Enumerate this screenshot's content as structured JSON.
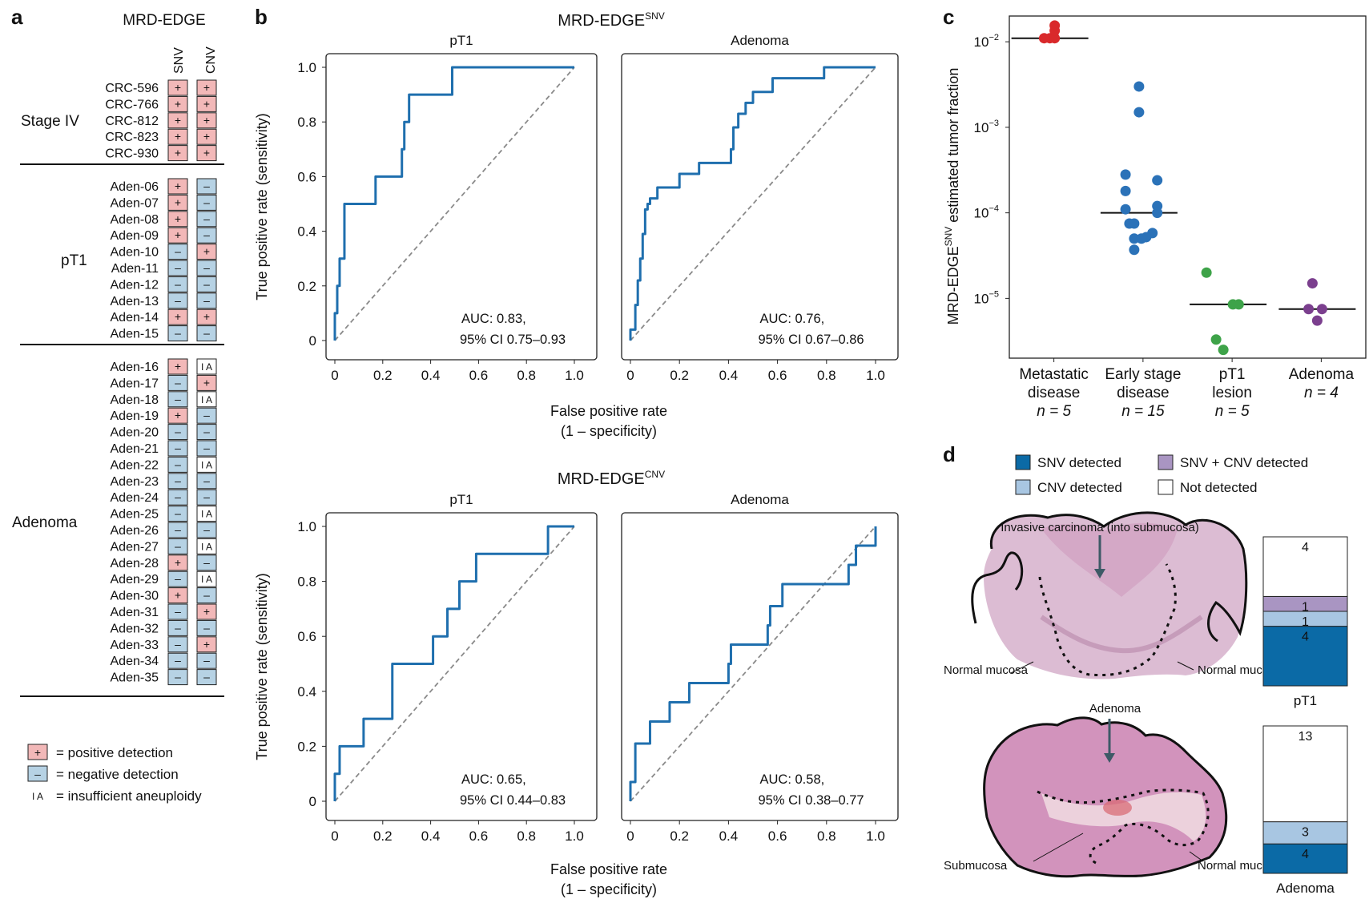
{
  "panel_labels": {
    "a": "a",
    "b": "b",
    "c": "c",
    "d": "d"
  },
  "panel_a": {
    "title": "MRD-EDGE",
    "col_headers": [
      "SNV",
      "CNV"
    ],
    "groups": [
      {
        "name": "Stage IV",
        "samples": [
          {
            "id": "CRC-596",
            "snv": "+",
            "cnv": "+"
          },
          {
            "id": "CRC-766",
            "snv": "+",
            "cnv": "+"
          },
          {
            "id": "CRC-812",
            "snv": "+",
            "cnv": "+"
          },
          {
            "id": "CRC-823",
            "snv": "+",
            "cnv": "+"
          },
          {
            "id": "CRC-930",
            "snv": "+",
            "cnv": "+"
          }
        ]
      },
      {
        "name": "pT1",
        "samples": [
          {
            "id": "Aden-06",
            "snv": "+",
            "cnv": "–"
          },
          {
            "id": "Aden-07",
            "snv": "+",
            "cnv": "–"
          },
          {
            "id": "Aden-08",
            "snv": "+",
            "cnv": "–"
          },
          {
            "id": "Aden-09",
            "snv": "+",
            "cnv": "–"
          },
          {
            "id": "Aden-10",
            "snv": "–",
            "cnv": "+"
          },
          {
            "id": "Aden-11",
            "snv": "–",
            "cnv": "–"
          },
          {
            "id": "Aden-12",
            "snv": "–",
            "cnv": "–"
          },
          {
            "id": "Aden-13",
            "snv": "–",
            "cnv": "–"
          },
          {
            "id": "Aden-14",
            "snv": "+",
            "cnv": "+"
          },
          {
            "id": "Aden-15",
            "snv": "–",
            "cnv": "–"
          }
        ]
      },
      {
        "name": "Adenoma",
        "samples": [
          {
            "id": "Aden-16",
            "snv": "+",
            "cnv": "I A"
          },
          {
            "id": "Aden-17",
            "snv": "–",
            "cnv": "+"
          },
          {
            "id": "Aden-18",
            "snv": "–",
            "cnv": "I A"
          },
          {
            "id": "Aden-19",
            "snv": "+",
            "cnv": "–"
          },
          {
            "id": "Aden-20",
            "snv": "–",
            "cnv": "–"
          },
          {
            "id": "Aden-21",
            "snv": "–",
            "cnv": "–"
          },
          {
            "id": "Aden-22",
            "snv": "–",
            "cnv": "I A"
          },
          {
            "id": "Aden-23",
            "snv": "–",
            "cnv": "–"
          },
          {
            "id": "Aden-24",
            "snv": "–",
            "cnv": "–"
          },
          {
            "id": "Aden-25",
            "snv": "–",
            "cnv": "I A"
          },
          {
            "id": "Aden-26",
            "snv": "–",
            "cnv": "–"
          },
          {
            "id": "Aden-27",
            "snv": "–",
            "cnv": "I A"
          },
          {
            "id": "Aden-28",
            "snv": "+",
            "cnv": "–"
          },
          {
            "id": "Aden-29",
            "snv": "–",
            "cnv": "I A"
          },
          {
            "id": "Aden-30",
            "snv": "+",
            "cnv": "–"
          },
          {
            "id": "Aden-31",
            "snv": "–",
            "cnv": "+"
          },
          {
            "id": "Aden-32",
            "snv": "–",
            "cnv": "–"
          },
          {
            "id": "Aden-33",
            "snv": "–",
            "cnv": "+"
          },
          {
            "id": "Aden-34",
            "snv": "–",
            "cnv": "–"
          },
          {
            "id": "Aden-35",
            "snv": "–",
            "cnv": "–"
          }
        ]
      }
    ],
    "legend": [
      {
        "symbol": "+",
        "text": "= positive detection"
      },
      {
        "symbol": "–",
        "text": "= negative detection"
      },
      {
        "symbol": "I A",
        "text": "= insufficient aneuploidy"
      }
    ],
    "colors": {
      "positive": "#f2b8b8",
      "negative": "#b6d2e4",
      "ia": "#ffffff"
    }
  },
  "chart_data": [
    {
      "type": "line",
      "id": "roc-snv-pt1",
      "title": "MRD-EDGE",
      "title_sup": "SNV",
      "subtitle": "pT1",
      "xlabel": "False positive rate",
      "xlabel2": "(1 – specificity)",
      "ylabel": "True positive rate (sensitivity)",
      "xlim": [
        0,
        1
      ],
      "ylim": [
        0,
        1
      ],
      "xticks": [
        "0",
        "0.2",
        "0.4",
        "0.6",
        "0.8",
        "1.0"
      ],
      "yticks": [
        "0",
        "0.2",
        "0.4",
        "0.6",
        "0.8",
        "1.0"
      ],
      "auc_line1": "AUC: 0.83,",
      "auc_line2": "95% CI 0.75–0.93",
      "x": [
        0,
        0,
        0.01,
        0.01,
        0.02,
        0.02,
        0.04,
        0.04,
        0.17,
        0.17,
        0.28,
        0.28,
        0.29,
        0.29,
        0.31,
        0.31,
        0.49,
        0.49,
        1.0
      ],
      "y": [
        0,
        0.1,
        0.1,
        0.2,
        0.2,
        0.3,
        0.3,
        0.5,
        0.5,
        0.6,
        0.6,
        0.7,
        0.7,
        0.8,
        0.8,
        0.9,
        0.9,
        1.0,
        1.0
      ]
    },
    {
      "type": "line",
      "id": "roc-snv-adenoma",
      "subtitle": "Adenoma",
      "xlim": [
        0,
        1
      ],
      "ylim": [
        0,
        1
      ],
      "xticks": [
        "0",
        "0.2",
        "0.4",
        "0.6",
        "0.8",
        "1.0"
      ],
      "auc_line1": "AUC: 0.76,",
      "auc_line2": "95% CI 0.67–0.86",
      "x": [
        0,
        0,
        0.02,
        0.02,
        0.03,
        0.03,
        0.04,
        0.04,
        0.05,
        0.05,
        0.06,
        0.06,
        0.07,
        0.07,
        0.08,
        0.08,
        0.09,
        0.09,
        0.11,
        0.11,
        0.13,
        0.13,
        0.2,
        0.2,
        0.28,
        0.28,
        0.41,
        0.41,
        0.42,
        0.42,
        0.44,
        0.44,
        0.47,
        0.47,
        0.5,
        0.5,
        0.54,
        0.54,
        0.58,
        0.58,
        0.73,
        0.73,
        0.79,
        0.79,
        1.0
      ],
      "y": [
        0,
        0.04,
        0.04,
        0.13,
        0.13,
        0.22,
        0.22,
        0.3,
        0.3,
        0.39,
        0.39,
        0.48,
        0.48,
        0.5,
        0.5,
        0.52,
        0.52,
        0.52,
        0.52,
        0.56,
        0.56,
        0.56,
        0.56,
        0.61,
        0.61,
        0.65,
        0.65,
        0.7,
        0.7,
        0.78,
        0.78,
        0.83,
        0.83,
        0.87,
        0.87,
        0.91,
        0.91,
        0.91,
        0.91,
        0.96,
        0.96,
        0.96,
        0.96,
        1.0,
        1.0
      ]
    },
    {
      "type": "line",
      "id": "roc-cnv-pt1",
      "title": "MRD-EDGE",
      "title_sup": "CNV",
      "subtitle": "pT1",
      "xlabel": "False positive rate",
      "xlabel2": "(1 – specificity)",
      "ylabel": "True positive rate (sensitivity)",
      "xlim": [
        0,
        1
      ],
      "ylim": [
        0,
        1
      ],
      "xticks": [
        "0",
        "0.2",
        "0.4",
        "0.6",
        "0.8",
        "1.0"
      ],
      "yticks": [
        "0",
        "0.2",
        "0.4",
        "0.6",
        "0.8",
        "1.0"
      ],
      "auc_line1": "AUC: 0.65,",
      "auc_line2": "95% CI 0.44–0.83",
      "x": [
        0,
        0,
        0.02,
        0.02,
        0.12,
        0.12,
        0.24,
        0.24,
        0.41,
        0.41,
        0.47,
        0.47,
        0.52,
        0.52,
        0.59,
        0.59,
        0.89,
        0.89,
        1.0
      ],
      "y": [
        0,
        0.1,
        0.1,
        0.2,
        0.2,
        0.3,
        0.3,
        0.5,
        0.5,
        0.6,
        0.6,
        0.7,
        0.7,
        0.8,
        0.8,
        0.9,
        0.9,
        1.0,
        1.0
      ]
    },
    {
      "type": "line",
      "id": "roc-cnv-adenoma",
      "subtitle": "Adenoma",
      "xlim": [
        0,
        1
      ],
      "ylim": [
        0,
        1
      ],
      "xticks": [
        "0",
        "0.2",
        "0.4",
        "0.6",
        "0.8",
        "1.0"
      ],
      "auc_line1": "AUC: 0.58,",
      "auc_line2": "95% CI 0.38–0.77",
      "x": [
        0,
        0,
        0.02,
        0.02,
        0.08,
        0.08,
        0.16,
        0.16,
        0.24,
        0.24,
        0.4,
        0.4,
        0.41,
        0.41,
        0.56,
        0.56,
        0.57,
        0.57,
        0.62,
        0.62,
        0.89,
        0.89,
        0.92,
        0.92,
        1.0,
        1.0
      ],
      "y": [
        0,
        0.07,
        0.07,
        0.21,
        0.21,
        0.29,
        0.29,
        0.36,
        0.36,
        0.43,
        0.43,
        0.5,
        0.5,
        0.57,
        0.57,
        0.64,
        0.64,
        0.71,
        0.71,
        0.79,
        0.79,
        0.86,
        0.86,
        0.93,
        0.93,
        1.0
      ]
    },
    {
      "type": "scatter",
      "id": "tumor-fraction",
      "ylabel_prefix": "MRD-EDGE",
      "ylabel_sup": "SNV",
      "ylabel_suffix": " estimated tumor fraction",
      "yscale": "log",
      "ylim": [
        2e-06,
        0.02
      ],
      "yticks": [
        {
          "base": "10",
          "exp": "−2",
          "value": 0.01
        },
        {
          "base": "10",
          "exp": "−3",
          "value": 0.001
        },
        {
          "base": "10",
          "exp": "−4",
          "value": 0.0001
        },
        {
          "base": "10",
          "exp": "−5",
          "value": 1e-05
        }
      ],
      "groups": [
        {
          "label1": "Metastatic",
          "label2": "disease",
          "n": "n = 5",
          "color": "#d9292b",
          "median": 0.011,
          "points": [
            [
              -0.12,
              0.011
            ],
            [
              0.0,
              0.011
            ],
            [
              0.1,
              0.011
            ],
            [
              0.1,
              0.0135
            ],
            [
              0.1,
              0.0155
            ]
          ]
        },
        {
          "label1": "Early stage",
          "label2": "disease",
          "n": "n = 15",
          "color": "#2b72b8",
          "median": 0.0001,
          "points": [
            [
              0.0,
              0.003
            ],
            [
              0.0,
              0.0015
            ],
            [
              -0.28,
              0.00028
            ],
            [
              0.38,
              0.00024
            ],
            [
              -0.28,
              0.00018
            ],
            [
              0.38,
              0.00012
            ],
            [
              -0.28,
              0.00011
            ],
            [
              0.38,
              0.0001
            ],
            [
              -0.2,
              7.5e-05
            ],
            [
              -0.1,
              7.5e-05
            ],
            [
              0.28,
              5.8e-05
            ],
            [
              0.15,
              5.2e-05
            ],
            [
              -0.1,
              5e-05
            ],
            [
              0.05,
              5e-05
            ],
            [
              -0.1,
              3.7e-05
            ]
          ]
        },
        {
          "label1": "pT1",
          "label2": "lesion",
          "n": "n = 5",
          "color": "#3ea349",
          "median": 8.5e-06,
          "points": [
            [
              -0.45,
              2e-05
            ],
            [
              0.1,
              8.5e-06
            ],
            [
              0.22,
              8.5e-06
            ],
            [
              -0.25,
              3.3e-06
            ],
            [
              -0.1,
              2.5e-06
            ]
          ]
        },
        {
          "label1": "Adenoma",
          "label2": "",
          "n": "n = 4",
          "color": "#7b3f8e",
          "median": 7.5e-06,
          "points": [
            [
              -0.1,
              1.5e-05
            ],
            [
              -0.18,
              7.5e-06
            ],
            [
              0.1,
              7.5e-06
            ],
            [
              0.0,
              5.5e-06
            ]
          ]
        }
      ]
    },
    {
      "type": "bar",
      "id": "detection-stacks",
      "stacked": true,
      "legend": [
        {
          "label": "SNV detected",
          "color": "#0b6aa6"
        },
        {
          "label": "SNV + CNV detected",
          "color": "#a995c2"
        },
        {
          "label": "CNV detected",
          "color": "#a8c6e2"
        },
        {
          "label": "Not detected",
          "color": "#ffffff"
        }
      ],
      "categories": [
        "pT1",
        "Adenoma"
      ],
      "series": [
        {
          "name": "SNV detected",
          "values": [
            4,
            4
          ]
        },
        {
          "name": "CNV detected",
          "values": [
            1,
            3
          ]
        },
        {
          "name": "SNV + CNV detected",
          "values": [
            1,
            0
          ]
        },
        {
          "name": "Not detected",
          "values": [
            4,
            13
          ]
        }
      ]
    }
  ],
  "panel_d": {
    "pt1_annotations": {
      "top": "Invasive carcinoma (into submucosa)",
      "left": "Normal mucosa",
      "right": "Normal mucosa"
    },
    "adenoma_annotations": {
      "top": "Adenoma",
      "left": "Submucosa",
      "right": "Normal mucosa"
    },
    "tissue_colors": {
      "pt1": "#d7b6cf",
      "adenoma": "#cf8ab4",
      "submucosa": "#e9c6d6"
    }
  }
}
